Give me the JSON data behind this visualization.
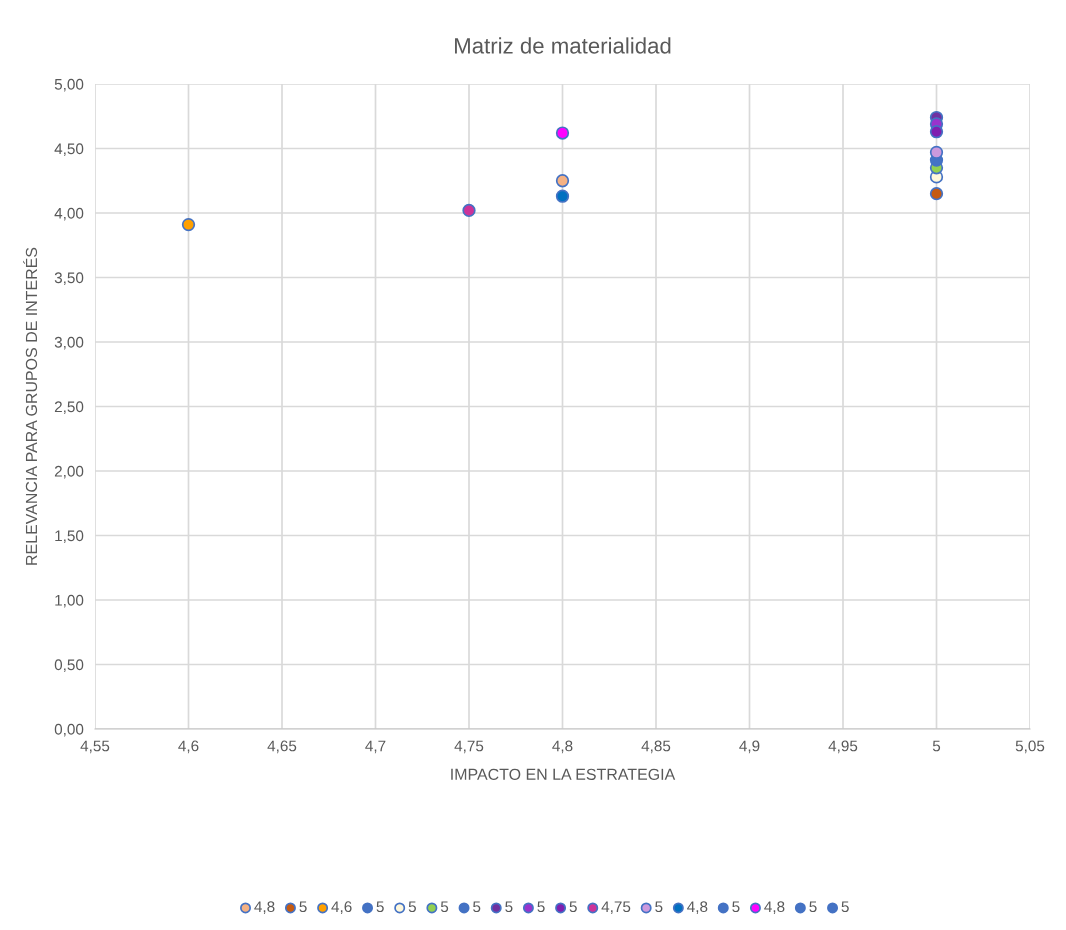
{
  "chart_data": {
    "type": "scatter",
    "title": "Matriz de materialidad",
    "xlabel": "IMPACTO EN LA ESTRATEGIA",
    "ylabel": "RELEVANCIA PARA GRUPOS DE INTERÉS",
    "xlim": [
      4.55,
      5.05
    ],
    "xticks": [
      {
        "value": 4.55,
        "label": "4,55"
      },
      {
        "value": 4.6,
        "label": "4,6"
      },
      {
        "value": 4.65,
        "label": "4,65"
      },
      {
        "value": 4.7,
        "label": "4,7"
      },
      {
        "value": 4.75,
        "label": "4,75"
      },
      {
        "value": 4.8,
        "label": "4,8"
      },
      {
        "value": 4.85,
        "label": "4,85"
      },
      {
        "value": 4.9,
        "label": "4,9"
      },
      {
        "value": 4.95,
        "label": "4,95"
      },
      {
        "value": 5,
        "label": "5"
      },
      {
        "value": 5.05,
        "label": "5,05"
      }
    ],
    "ylim": [
      0,
      5
    ],
    "yticks": [
      {
        "value": 0,
        "label": "0,00"
      },
      {
        "value": 0.5,
        "label": "0,50"
      },
      {
        "value": 1,
        "label": "1,00"
      },
      {
        "value": 1.5,
        "label": "1,50"
      },
      {
        "value": 2,
        "label": "2,00"
      },
      {
        "value": 2.5,
        "label": "2,50"
      },
      {
        "value": 3,
        "label": "3,00"
      },
      {
        "value": 3.5,
        "label": "3,50"
      },
      {
        "value": 4,
        "label": "4,00"
      },
      {
        "value": 4.5,
        "label": "4,50"
      },
      {
        "value": 5,
        "label": "5,00"
      }
    ],
    "grid": true,
    "legend": "bottom",
    "marker": "circle",
    "series": [
      {
        "name": "4,8",
        "color": "#f4b183",
        "x": [
          4.8
        ],
        "values": [
          4.25
        ]
      },
      {
        "name": "5",
        "color": "#c55a11",
        "x": [
          5
        ],
        "values": [
          4.15
        ]
      },
      {
        "name": "4,6",
        "color": "#ffa000",
        "x": [
          4.6
        ],
        "values": [
          3.91
        ]
      },
      {
        "name": "5",
        "color": "#4472c4",
        "x": [
          null
        ],
        "values": [
          null
        ]
      },
      {
        "name": "5",
        "color": "#fff8dc",
        "x": [
          5
        ],
        "values": [
          4.28
        ]
      },
      {
        "name": "5",
        "color": "#92d050",
        "x": [
          5
        ],
        "values": [
          4.35
        ]
      },
      {
        "name": "5",
        "color": "#4472c4",
        "x": [
          5
        ],
        "values": [
          4.41
        ]
      },
      {
        "name": "5",
        "color": "#7030a0",
        "x": [
          5
        ],
        "values": [
          4.74
        ]
      },
      {
        "name": "5",
        "color": "#9933cc",
        "x": [
          5
        ],
        "values": [
          4.69
        ]
      },
      {
        "name": "5",
        "color": "#7f1fb0",
        "x": [
          5
        ],
        "values": [
          4.63
        ]
      },
      {
        "name": "4,75",
        "color": "#cc3399",
        "x": [
          4.75
        ],
        "values": [
          4.02
        ]
      },
      {
        "name": "5",
        "color": "#cc99dd",
        "x": [
          5
        ],
        "values": [
          4.47
        ]
      },
      {
        "name": "4,8",
        "color": "#0070c0",
        "x": [
          4.8
        ],
        "values": [
          4.13
        ]
      },
      {
        "name": "5",
        "color": "#4472c4",
        "x": [
          null
        ],
        "values": [
          null
        ]
      },
      {
        "name": "4,8",
        "color": "#ff00ff",
        "x": [
          4.8
        ],
        "values": [
          4.62
        ]
      },
      {
        "name": "5",
        "color": "#4472c4",
        "x": [
          null
        ],
        "values": [
          null
        ]
      },
      {
        "name": "5",
        "color": "#4472c4",
        "x": [
          null
        ],
        "values": [
          null
        ]
      }
    ]
  }
}
